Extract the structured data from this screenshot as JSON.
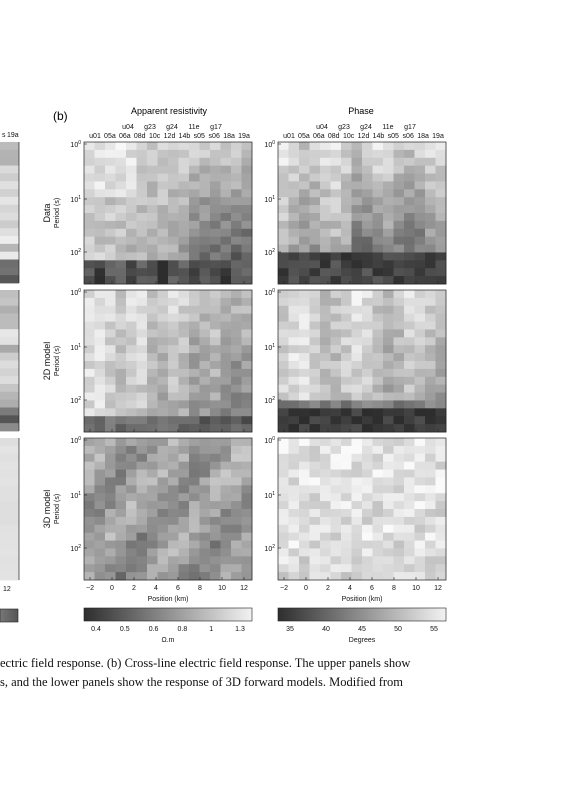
{
  "figure": {
    "panel_label": "(b)",
    "column_titles": [
      "Apparent resistivity",
      "Phase"
    ],
    "left_cut_labels": [
      "s",
      "19a",
      "12"
    ],
    "site_labels_top": [
      "u04",
      "g23",
      "g24",
      "11e",
      "g17"
    ],
    "site_labels_bottom": [
      "u01",
      "05a",
      "06a",
      "08d",
      "10c",
      "12d",
      "14b",
      "s05",
      "s06",
      "18a",
      "19a"
    ],
    "row_labels": [
      {
        "title": "Data",
        "ylabel": "Period (s)"
      },
      {
        "title": "2D model",
        "ylabel": "Period (s)"
      },
      {
        "title": "3D model",
        "ylabel": "Period (s)"
      }
    ],
    "period_ticks": [
      {
        "base": "10",
        "exp": "0"
      },
      {
        "base": "10",
        "exp": "1"
      },
      {
        "base": "10",
        "exp": "2"
      }
    ],
    "position_ticks": [
      "−2",
      "0",
      "2",
      "4",
      "6",
      "8",
      "10",
      "12"
    ],
    "xlabel": "Position (km)",
    "colorbars": [
      {
        "ticks": [
          "0.4",
          "0.5",
          "0.6",
          "0.8",
          "1",
          "1.3"
        ],
        "unit": "Ω.m",
        "dark": "#2e2e2e",
        "light": "#f2f2f2"
      },
      {
        "ticks": [
          "35",
          "40",
          "45",
          "50",
          "55"
        ],
        "unit": "Degrees",
        "dark": "#2e2e2e",
        "light": "#f2f2f2"
      }
    ]
  },
  "caption": {
    "line1": "ectric field response. (b) Cross-line electric field response. The upper panels show",
    "line2": "s, and the lower panels show the response of 3D forward models. Modified from"
  }
}
